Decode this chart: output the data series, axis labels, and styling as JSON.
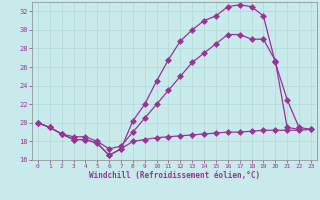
{
  "xlabel": "Windchill (Refroidissement éolien,°C)",
  "bg_color": "#c8eaea",
  "grid_color": "#b0d8d8",
  "line_color": "#993399",
  "xlim": [
    -0.5,
    23.5
  ],
  "ylim": [
    16,
    33
  ],
  "xticks": [
    0,
    1,
    2,
    3,
    4,
    5,
    6,
    7,
    8,
    9,
    10,
    11,
    12,
    13,
    14,
    15,
    16,
    17,
    18,
    19,
    20,
    21,
    22,
    23
  ],
  "yticks": [
    16,
    18,
    20,
    22,
    24,
    26,
    28,
    30,
    32
  ],
  "line1_x": [
    0,
    1,
    2,
    3,
    4,
    5,
    6,
    7,
    8,
    9,
    10,
    11,
    12,
    13,
    14,
    15,
    16,
    17,
    18,
    19,
    20,
    21,
    22,
    23
  ],
  "line1_y": [
    20,
    19.5,
    18.8,
    18.2,
    18.2,
    17.8,
    16.5,
    17.2,
    18.0,
    18.2,
    18.4,
    18.5,
    18.6,
    18.7,
    18.8,
    18.9,
    19.0,
    19.0,
    19.1,
    19.2,
    19.2,
    19.2,
    19.2,
    19.3
  ],
  "line2_x": [
    0,
    1,
    2,
    3,
    4,
    5,
    6,
    7,
    8,
    9,
    10,
    11,
    12,
    13,
    14,
    15,
    16,
    17,
    18,
    19,
    20,
    21,
    22,
    23
  ],
  "line2_y": [
    20,
    19.5,
    18.8,
    18.2,
    18.2,
    17.8,
    16.5,
    17.2,
    20.2,
    22.0,
    24.5,
    26.8,
    28.8,
    30.0,
    31.0,
    31.5,
    32.5,
    32.7,
    32.5,
    31.5,
    26.5,
    22.5,
    19.5,
    19.3
  ],
  "line3_x": [
    0,
    1,
    2,
    3,
    4,
    5,
    6,
    7,
    8,
    9,
    10,
    11,
    12,
    13,
    14,
    15,
    16,
    17,
    18,
    19,
    20,
    21,
    22
  ],
  "line3_y": [
    20,
    19.5,
    18.8,
    18.5,
    18.5,
    18.0,
    17.2,
    17.5,
    19.0,
    20.5,
    22.0,
    23.5,
    25.0,
    26.5,
    27.5,
    28.5,
    29.5,
    29.5,
    29.0,
    29.0,
    26.7,
    19.5,
    19.3
  ]
}
